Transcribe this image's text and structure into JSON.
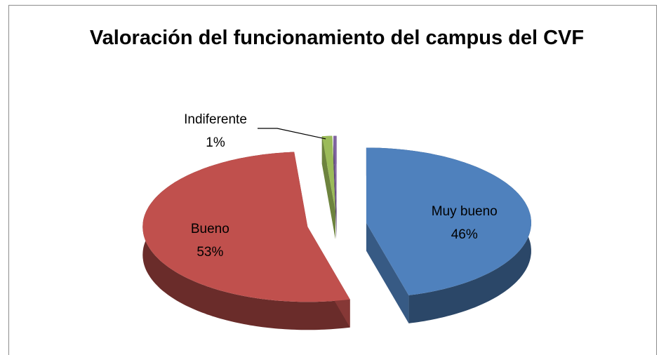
{
  "chart_data": {
    "type": "pie3d",
    "title": "Valoración del funcionamiento del campus del CVF",
    "categories": [
      "Muy bueno",
      "Bueno",
      "Indiferente",
      null
    ],
    "values": [
      46,
      53,
      1,
      0.3
    ],
    "value_labels": [
      "46%",
      "53%",
      "1%",
      null
    ],
    "colors": [
      "#4f81bd",
      "#c0504d",
      "#9bbb59",
      "#8064a2"
    ]
  }
}
